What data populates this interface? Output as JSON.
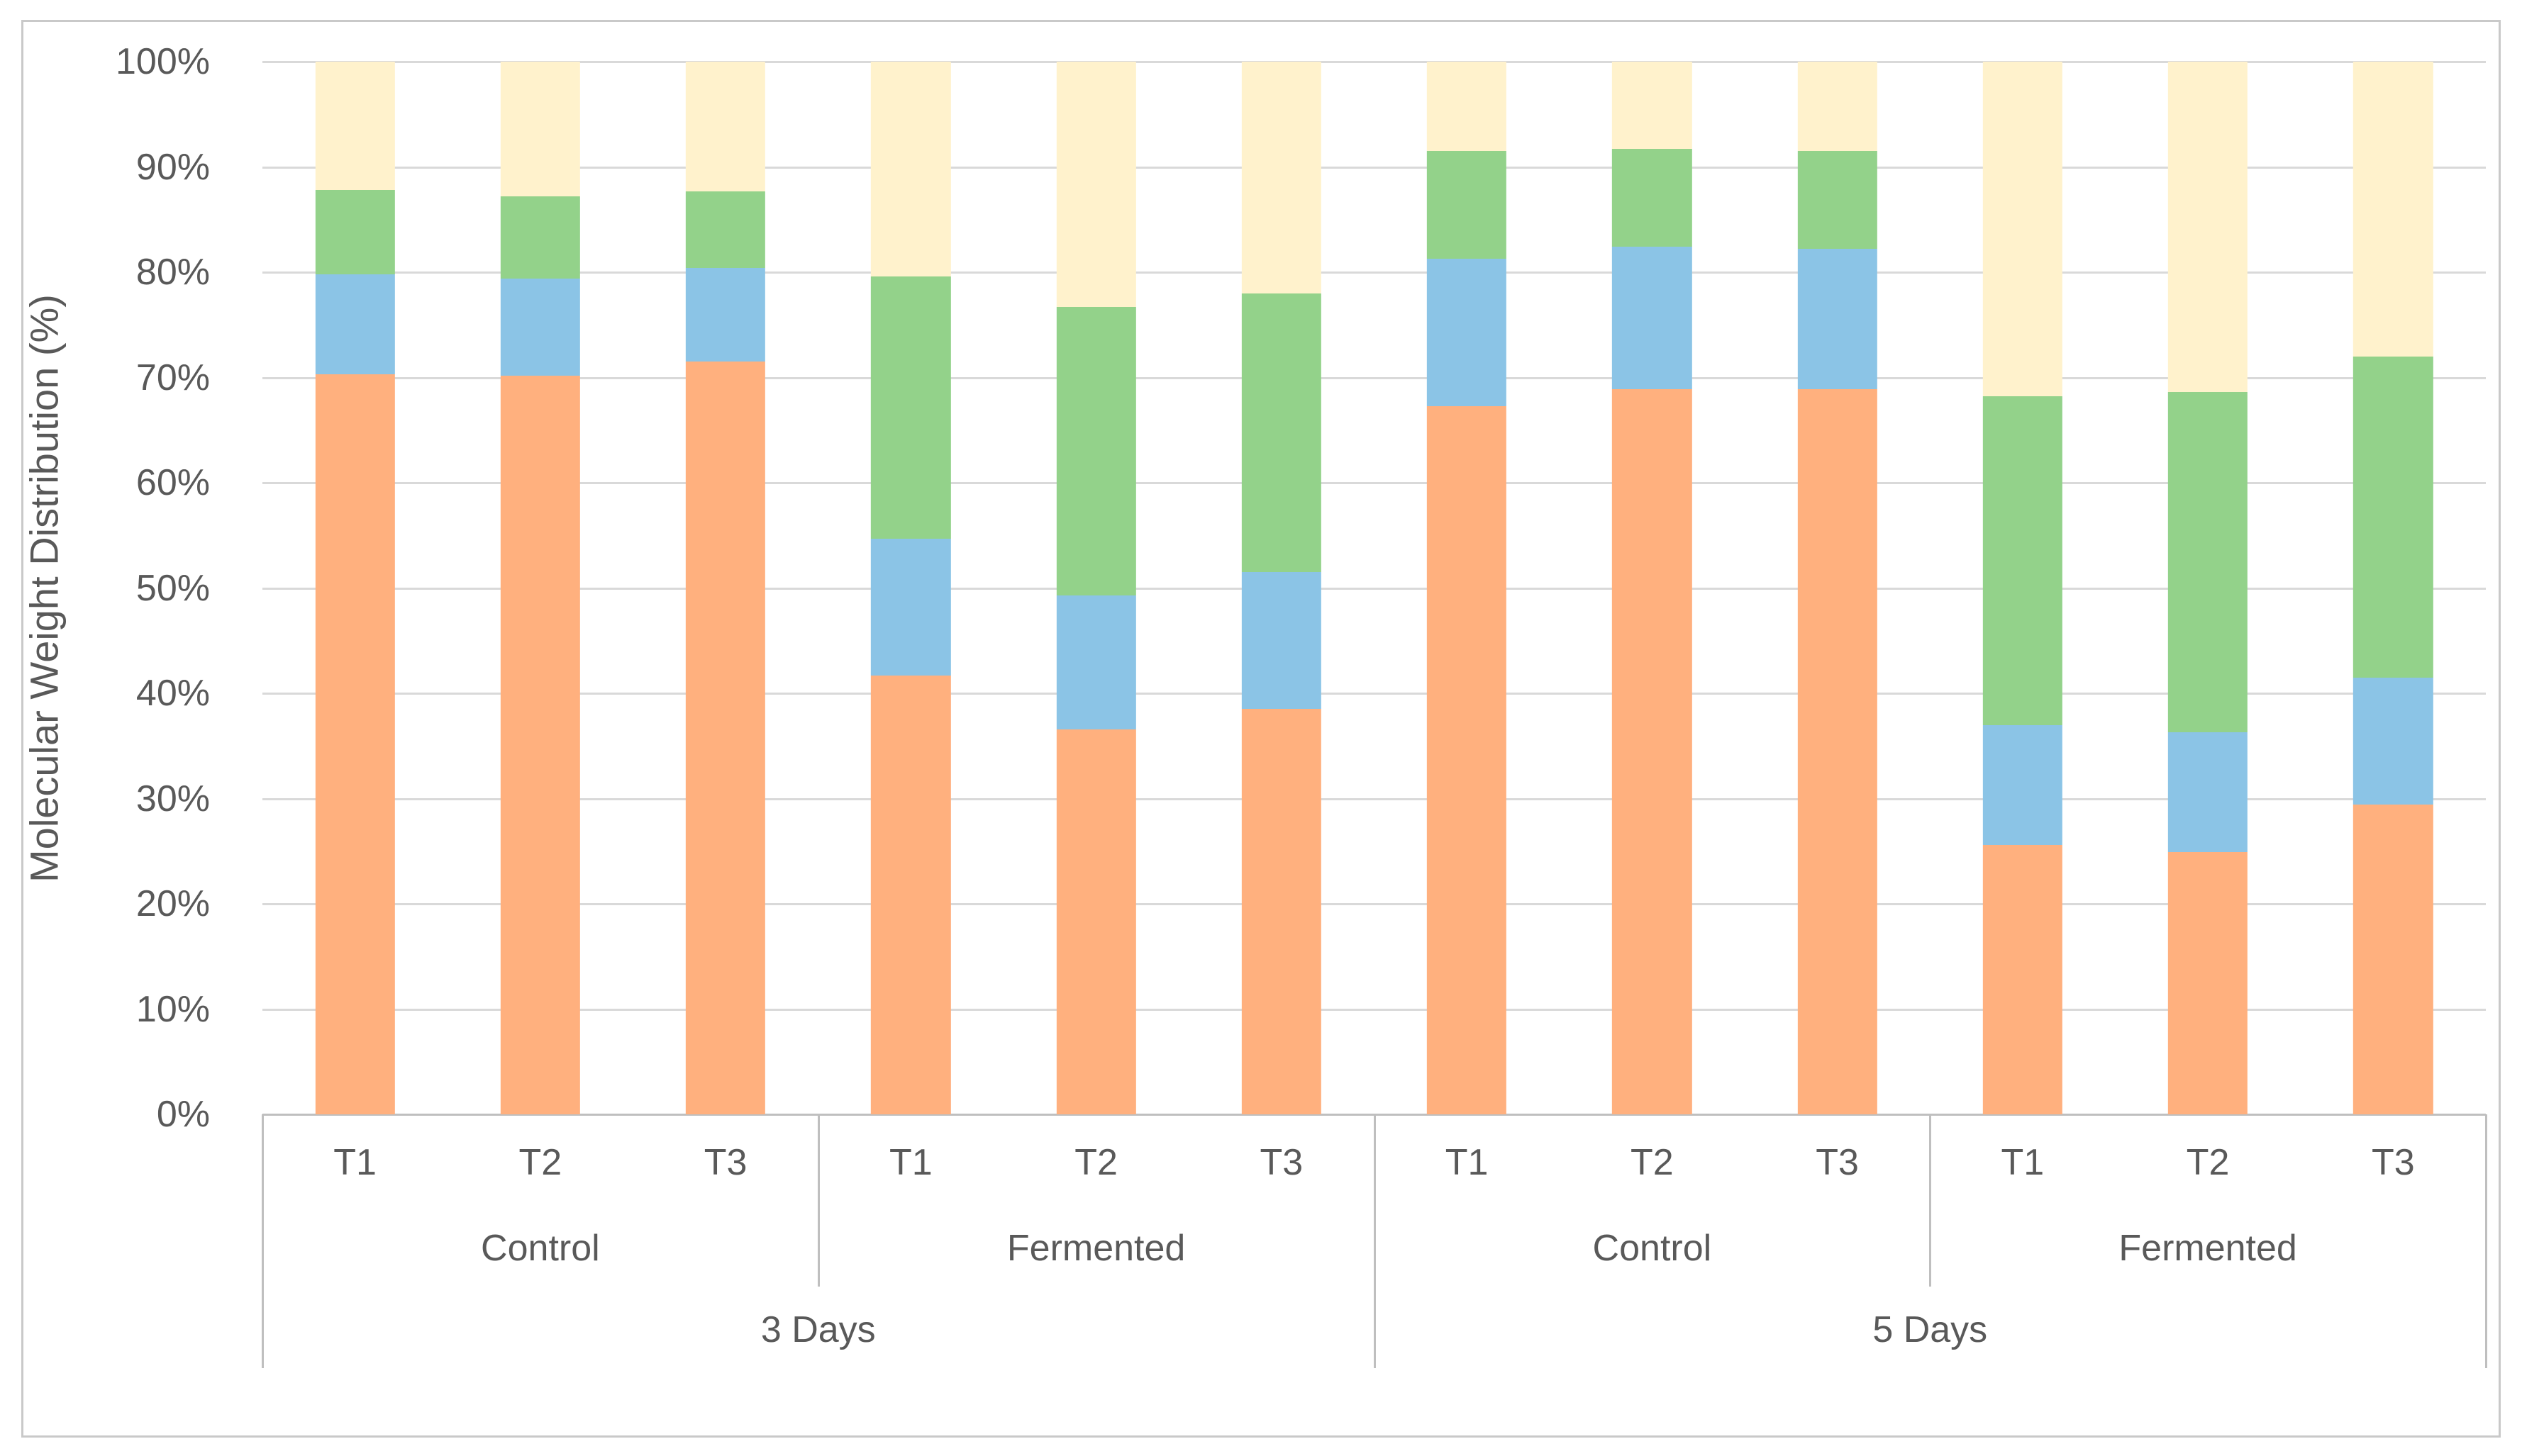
{
  "page": {
    "background": "#ffffff",
    "border_color": "#c9c9c9",
    "text_color": "#595959",
    "gridline_color": "#d9d9d9",
    "axis_line_color": "#bfbfbf"
  },
  "chart_data": {
    "type": "bar",
    "variant": "stacked-column-100pct",
    "stacked": true,
    "title": "",
    "xlabel": "",
    "ylabel": "Molecular Weight Distribution (%)",
    "ylim": [
      0,
      100
    ],
    "yticks": [
      0,
      10,
      20,
      30,
      40,
      50,
      60,
      70,
      80,
      90,
      100
    ],
    "ytick_labels": [
      "0%",
      "10%",
      "20%",
      "30%",
      "40%",
      "50%",
      "60%",
      "70%",
      "80%",
      "90%",
      "100%"
    ],
    "grid": "horizontal-major",
    "legend_position": "none",
    "categories": [
      "T1",
      "T2",
      "T3",
      "T1",
      "T2",
      "T3",
      "T1",
      "T2",
      "T3",
      "T1",
      "T2",
      "T3"
    ],
    "treatment_groups": [
      {
        "label": "Control",
        "start": 0,
        "end": 2
      },
      {
        "label": "Fermented",
        "start": 3,
        "end": 5
      },
      {
        "label": "Control",
        "start": 6,
        "end": 8
      },
      {
        "label": "Fermented",
        "start": 9,
        "end": 11
      }
    ],
    "day_groups": [
      {
        "label": "3 Days",
        "start": 0,
        "end": 5
      },
      {
        "label": "5 Days",
        "start": 6,
        "end": 11
      }
    ],
    "series": [
      {
        "name": "orange-bottom-segment",
        "color": "#FFB07E",
        "values": [
          70.3,
          70.2,
          71.5,
          41.7,
          36.6,
          38.5,
          67.3,
          68.9,
          68.9,
          25.6,
          24.9,
          29.4
        ]
      },
      {
        "name": "blue-segment",
        "color": "#8BC4E6",
        "values": [
          9.5,
          9.2,
          8.9,
          13.0,
          12.7,
          13.0,
          14.0,
          13.5,
          13.3,
          11.4,
          11.4,
          12.1
        ]
      },
      {
        "name": "green-segment",
        "color": "#93D28A",
        "values": [
          8.0,
          7.8,
          7.3,
          24.9,
          27.4,
          26.5,
          10.2,
          9.3,
          9.3,
          31.2,
          32.3,
          30.5
        ]
      },
      {
        "name": "cream-top-segment",
        "color": "#FFF2CC",
        "values": [
          12.2,
          12.8,
          12.3,
          20.4,
          23.3,
          22.0,
          8.5,
          8.3,
          8.5,
          31.8,
          31.4,
          28.0
        ]
      }
    ]
  }
}
